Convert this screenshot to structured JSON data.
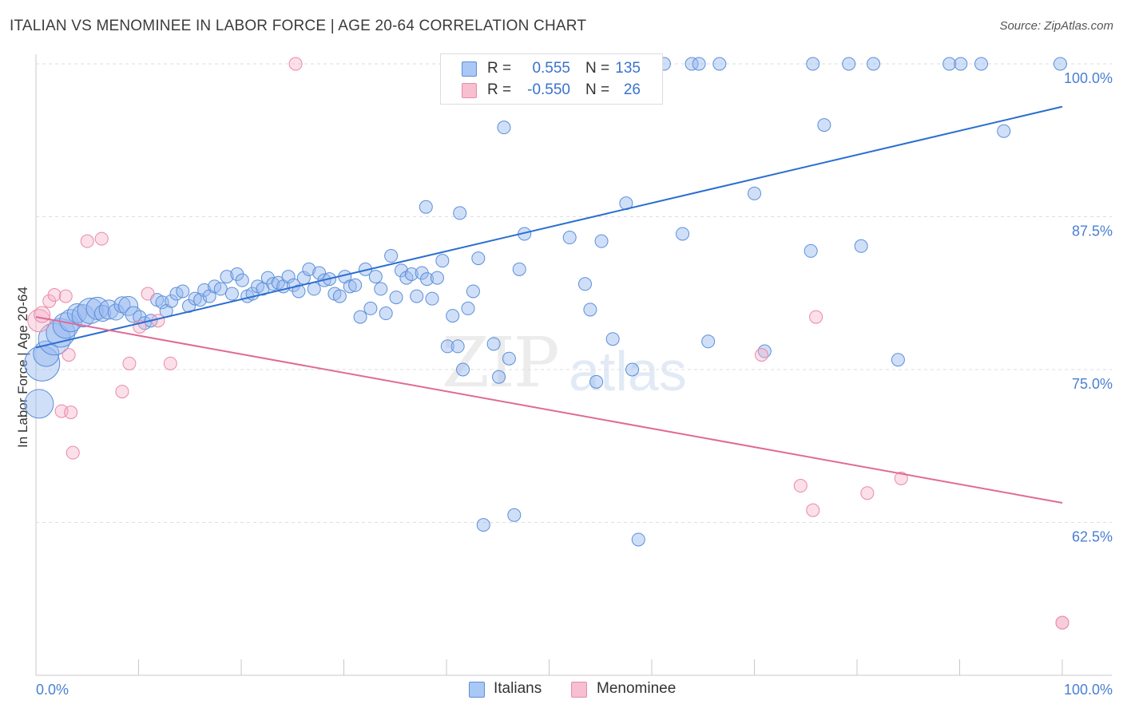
{
  "title": "ITALIAN VS MENOMINEE IN LABOR FORCE | AGE 20-64 CORRELATION CHART",
  "source": "Source: ZipAtlas.com",
  "watermark": {
    "zip": "ZIP",
    "atlas": "atlas"
  },
  "legend": {
    "r_label": "R =",
    "n_label": "N =",
    "rows": [
      {
        "r": "0.555",
        "n": "135",
        "fill": "#a9c8f5",
        "stroke": "#5b8fd8",
        "text_color": "#3a72cc"
      },
      {
        "r": "-0.550",
        "n": "26",
        "fill": "#f7bfd0",
        "stroke": "#e98aa8",
        "text_color": "#3a72cc"
      }
    ]
  },
  "bottom_legend": [
    {
      "label": "Italians",
      "fill": "#a9c8f5",
      "stroke": "#5b8fd8"
    },
    {
      "label": "Menominee",
      "fill": "#f7bfd0",
      "stroke": "#e98aa8"
    }
  ],
  "chart_data": {
    "type": "scatter",
    "title": "ITALIAN VS MENOMINEE IN LABOR FORCE | AGE 20-64 CORRELATION CHART",
    "xlabel": "",
    "ylabel": "In Labor Force | Age 20-64",
    "x_tick_labels": [
      "0.0%",
      "100.0%"
    ],
    "y_tick_labels": [
      "62.5%",
      "75.0%",
      "87.5%",
      "100.0%"
    ],
    "xlim": [
      0,
      100
    ],
    "ylim": [
      52,
      101
    ],
    "grid": "horizontal dashed",
    "y_gridlines": [
      62.5,
      75.0,
      87.5,
      100.0
    ],
    "colors": {
      "italians": "#5b8fd8",
      "menominee": "#e98aa8",
      "italians_line": "#2a6fd0",
      "menominee_line": "#e06a96"
    },
    "series": [
      {
        "name": "Italians",
        "trend": {
          "x": [
            0,
            100
          ],
          "y": [
            76.8,
            96.5
          ]
        },
        "points": [
          [
            0.3,
            72.2,
            18
          ],
          [
            0.6,
            75.5,
            22
          ],
          [
            1.0,
            76.3,
            16
          ],
          [
            1.8,
            77.5,
            20
          ],
          [
            2.4,
            78.0,
            18
          ],
          [
            2.9,
            78.6,
            16
          ],
          [
            3.4,
            79.0,
            14
          ],
          [
            4.0,
            79.6,
            12
          ],
          [
            4.6,
            79.4,
            14
          ],
          [
            5.3,
            79.8,
            16
          ],
          [
            6.0,
            80.0,
            14
          ],
          [
            6.5,
            79.6,
            10
          ],
          [
            7.1,
            79.9,
            12
          ],
          [
            7.8,
            79.7,
            10
          ],
          [
            8.4,
            80.3,
            10
          ],
          [
            9.0,
            80.2,
            12
          ],
          [
            9.5,
            79.5,
            10
          ],
          [
            10.1,
            79.3,
            8
          ],
          [
            10.6,
            78.8,
            8
          ],
          [
            11.2,
            79.0,
            8
          ],
          [
            11.8,
            80.7,
            8
          ],
          [
            12.3,
            80.5,
            8
          ],
          [
            12.7,
            79.8,
            8
          ],
          [
            13.2,
            80.6,
            8
          ],
          [
            13.7,
            81.2,
            8
          ],
          [
            14.3,
            81.4,
            8
          ],
          [
            14.9,
            80.2,
            8
          ],
          [
            15.5,
            80.8,
            8
          ],
          [
            16.0,
            80.7,
            8
          ],
          [
            16.4,
            81.5,
            8
          ],
          [
            16.9,
            81.0,
            8
          ],
          [
            17.4,
            81.8,
            8
          ],
          [
            18.0,
            81.6,
            8
          ],
          [
            18.6,
            82.6,
            8
          ],
          [
            19.1,
            81.2,
            8
          ],
          [
            19.6,
            82.8,
            8
          ],
          [
            20.1,
            82.3,
            8
          ],
          [
            20.6,
            81.0,
            8
          ],
          [
            21.1,
            81.2,
            8
          ],
          [
            21.6,
            81.8,
            8
          ],
          [
            22.1,
            81.6,
            8
          ],
          [
            22.6,
            82.5,
            8
          ],
          [
            23.1,
            82.0,
            8
          ],
          [
            23.6,
            82.1,
            8
          ],
          [
            24.1,
            81.8,
            8
          ],
          [
            24.6,
            82.6,
            8
          ],
          [
            25.1,
            81.9,
            8
          ],
          [
            25.6,
            81.4,
            8
          ],
          [
            26.1,
            82.5,
            8
          ],
          [
            26.6,
            83.2,
            8
          ],
          [
            27.1,
            81.6,
            8
          ],
          [
            27.6,
            82.9,
            8
          ],
          [
            28.1,
            82.3,
            8
          ],
          [
            28.6,
            82.4,
            8
          ],
          [
            29.1,
            81.2,
            8
          ],
          [
            29.6,
            81.0,
            8
          ],
          [
            30.1,
            82.6,
            8
          ],
          [
            30.6,
            81.8,
            8
          ],
          [
            31.1,
            81.9,
            8
          ],
          [
            31.6,
            79.3,
            8
          ],
          [
            32.1,
            83.2,
            8
          ],
          [
            32.6,
            80.0,
            8
          ],
          [
            33.1,
            82.6,
            8
          ],
          [
            33.6,
            81.6,
            8
          ],
          [
            34.1,
            79.6,
            8
          ],
          [
            34.6,
            84.3,
            8
          ],
          [
            35.1,
            80.9,
            8
          ],
          [
            35.6,
            83.1,
            8
          ],
          [
            36.1,
            82.5,
            8
          ],
          [
            36.6,
            82.8,
            8
          ],
          [
            37.1,
            81.0,
            8
          ],
          [
            37.6,
            82.9,
            8
          ],
          [
            38.1,
            82.4,
            8
          ],
          [
            38.6,
            80.8,
            8
          ],
          [
            39.1,
            82.5,
            8
          ],
          [
            39.6,
            83.9,
            8
          ],
          [
            40.1,
            76.9,
            8
          ],
          [
            40.6,
            79.4,
            8
          ],
          [
            41.1,
            76.9,
            8
          ],
          [
            41.6,
            75.0,
            8
          ],
          [
            42.1,
            80.0,
            8
          ],
          [
            42.6,
            81.4,
            8
          ],
          [
            43.1,
            84.1,
            8
          ],
          [
            43.6,
            62.3,
            8
          ],
          [
            44.6,
            77.1,
            8
          ],
          [
            45.1,
            74.4,
            8
          ],
          [
            45.6,
            94.8,
            8
          ],
          [
            46.1,
            75.9,
            8
          ],
          [
            46.6,
            63.1,
            8
          ],
          [
            47.1,
            83.2,
            8
          ],
          [
            47.6,
            86.1,
            8
          ],
          [
            38.0,
            88.3,
            8
          ],
          [
            41.3,
            87.8,
            8
          ],
          [
            52.0,
            85.8,
            8
          ],
          [
            53.5,
            82.0,
            8
          ],
          [
            54.0,
            79.9,
            8
          ],
          [
            54.6,
            74.0,
            8
          ],
          [
            55.1,
            85.5,
            8
          ],
          [
            56.2,
            77.5,
            8
          ],
          [
            57.5,
            88.6,
            8
          ],
          [
            58.1,
            75.0,
            8
          ],
          [
            58.7,
            61.1,
            8
          ],
          [
            63.0,
            86.1,
            8
          ],
          [
            65.5,
            77.3,
            8
          ],
          [
            70.0,
            89.4,
            8
          ],
          [
            71.0,
            76.5,
            8
          ],
          [
            75.5,
            84.7,
            8
          ],
          [
            76.8,
            95.0,
            8
          ],
          [
            80.4,
            85.1,
            8
          ],
          [
            84.0,
            75.8,
            8
          ],
          [
            94.3,
            94.5,
            8
          ],
          [
            50.0,
            100,
            8
          ],
          [
            50.5,
            100,
            8
          ],
          [
            53.0,
            100,
            8
          ],
          [
            53.7,
            100,
            8
          ],
          [
            54.8,
            100,
            8
          ],
          [
            55.4,
            100,
            8
          ],
          [
            56.0,
            100,
            8
          ],
          [
            56.6,
            100,
            8
          ],
          [
            57.2,
            100,
            8
          ],
          [
            58.0,
            100,
            8
          ],
          [
            59.2,
            100,
            8
          ],
          [
            61.2,
            100,
            8
          ],
          [
            63.9,
            100,
            8
          ],
          [
            64.6,
            100,
            8
          ],
          [
            66.6,
            100,
            8
          ],
          [
            75.7,
            100,
            8
          ],
          [
            79.2,
            100,
            8
          ],
          [
            81.6,
            100,
            8
          ],
          [
            89.0,
            100,
            8
          ],
          [
            90.1,
            100,
            8
          ],
          [
            92.1,
            100,
            8
          ],
          [
            99.8,
            100,
            8
          ]
        ]
      },
      {
        "name": "Menominee",
        "trend": {
          "x": [
            0,
            100
          ],
          "y": [
            79.3,
            64.1
          ]
        },
        "points": [
          [
            0.3,
            79.0,
            14
          ],
          [
            0.6,
            79.5,
            10
          ],
          [
            1.3,
            80.6,
            8
          ],
          [
            1.8,
            81.1,
            8
          ],
          [
            2.5,
            71.6,
            8
          ],
          [
            2.9,
            81.0,
            8
          ],
          [
            3.2,
            76.2,
            8
          ],
          [
            3.4,
            71.5,
            8
          ],
          [
            3.6,
            68.2,
            8
          ],
          [
            5.0,
            85.5,
            8
          ],
          [
            6.4,
            85.7,
            8
          ],
          [
            8.4,
            73.2,
            8
          ],
          [
            9.1,
            75.5,
            8
          ],
          [
            10.1,
            78.5,
            8
          ],
          [
            10.9,
            81.2,
            8
          ],
          [
            11.9,
            79.0,
            8
          ],
          [
            13.1,
            75.5,
            8
          ],
          [
            25.3,
            100,
            8
          ],
          [
            70.7,
            76.2,
            8
          ],
          [
            74.5,
            65.5,
            8
          ],
          [
            75.7,
            63.5,
            8
          ],
          [
            76.0,
            79.3,
            8
          ],
          [
            81.0,
            64.9,
            8
          ],
          [
            84.3,
            66.1,
            8
          ],
          [
            100.0,
            54.3,
            8
          ],
          [
            100.0,
            54.3,
            8
          ]
        ]
      }
    ]
  }
}
